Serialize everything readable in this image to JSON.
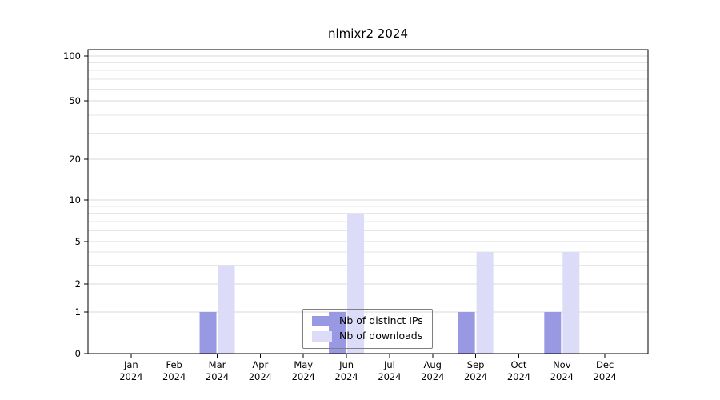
{
  "chart_data": {
    "type": "bar",
    "title": "nlmixr2 2024",
    "year": "2024",
    "months": [
      "Jan",
      "Feb",
      "Mar",
      "Apr",
      "May",
      "Jun",
      "Jul",
      "Aug",
      "Sep",
      "Oct",
      "Nov",
      "Dec"
    ],
    "categories": [
      "Jan 2024",
      "Feb 2024",
      "Mar 2024",
      "Apr 2024",
      "May 2024",
      "Jun 2024",
      "Jul 2024",
      "Aug 2024",
      "Sep 2024",
      "Oct 2024",
      "Nov 2024",
      "Dec 2024"
    ],
    "series": [
      {
        "name": "Nb of distinct IPs",
        "color": "#9999e3",
        "values": [
          0,
          0,
          1,
          0,
          0,
          1,
          0,
          0,
          1,
          0,
          1,
          0
        ]
      },
      {
        "name": "Nb of downloads",
        "color": "#dcdcf8",
        "values": [
          0,
          0,
          3,
          0,
          0,
          8,
          0,
          0,
          4,
          0,
          4,
          0
        ]
      }
    ],
    "y_ticks": [
      0,
      1,
      2,
      5,
      10,
      20,
      50,
      100
    ],
    "y_minor_gridlines": [
      3,
      4,
      6,
      7,
      8,
      9,
      30,
      40,
      60,
      70,
      80,
      90
    ],
    "y_scale": "log above 1, 0 pinned at baseline",
    "ylim": [
      0,
      100
    ],
    "grid": "horizontal",
    "legend_position": "lower center, transparent background"
  }
}
